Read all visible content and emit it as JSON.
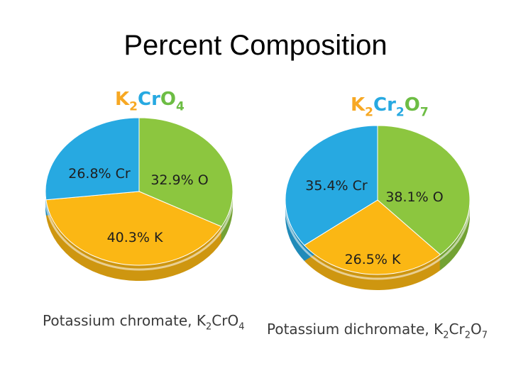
{
  "slide": {
    "title": "Percent Composition"
  },
  "colors": {
    "O": "#8cc63f",
    "K": "#fbb714",
    "Cr": "#27a9e1",
    "formula_orange": "#f7a823",
    "formula_blue": "#27a9e1",
    "formula_green": "#6dbd44",
    "caption": "#3a3a3a"
  },
  "chart_data": [
    {
      "type": "pie",
      "formula": [
        {
          "t": "K",
          "c": "formula_orange"
        },
        {
          "t": "2",
          "c": "formula_orange",
          "sub": true
        },
        {
          "t": "Cr",
          "c": "formula_blue"
        },
        {
          "t": "O",
          "c": "formula_green"
        },
        {
          "t": "4",
          "c": "formula_green",
          "sub": true
        }
      ],
      "caption": [
        {
          "t": "Potassium chromate, K"
        },
        {
          "t": "2",
          "sub": true
        },
        {
          "t": "CrO"
        },
        {
          "t": "4",
          "sub": true
        }
      ],
      "slices": [
        {
          "element": "O",
          "value": 32.9,
          "label": "32.9% O",
          "color": "O"
        },
        {
          "element": "K",
          "value": 40.3,
          "label": "40.3% K",
          "color": "K"
        },
        {
          "element": "Cr",
          "value": 26.8,
          "label": "26.8% Cr",
          "color": "Cr"
        }
      ]
    },
    {
      "type": "pie",
      "formula": [
        {
          "t": "K",
          "c": "formula_orange"
        },
        {
          "t": "2",
          "c": "formula_orange",
          "sub": true
        },
        {
          "t": "Cr",
          "c": "formula_blue"
        },
        {
          "t": "2",
          "c": "formula_blue",
          "sub": true
        },
        {
          "t": "O",
          "c": "formula_green"
        },
        {
          "t": "7",
          "c": "formula_green",
          "sub": true
        }
      ],
      "caption": [
        {
          "t": "Potassium dichromate, K"
        },
        {
          "t": "2",
          "sub": true
        },
        {
          "t": "Cr"
        },
        {
          "t": "2",
          "sub": true
        },
        {
          "t": "O"
        },
        {
          "t": "7",
          "sub": true
        }
      ],
      "slices": [
        {
          "element": "O",
          "value": 38.1,
          "label": "38.1% O",
          "color": "O"
        },
        {
          "element": "K",
          "value": 26.5,
          "label": "26.5% K",
          "color": "K"
        },
        {
          "element": "Cr",
          "value": 35.4,
          "label": "35.4% Cr",
          "color": "Cr"
        }
      ]
    }
  ]
}
